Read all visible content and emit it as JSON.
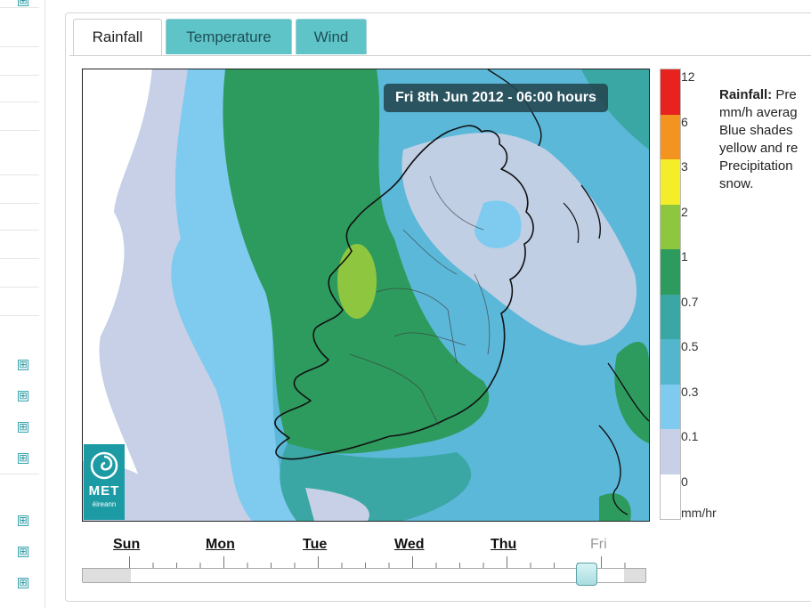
{
  "tabs": [
    "Rainfall",
    "Temperature",
    "Wind"
  ],
  "active_tab": "Rainfall",
  "map": {
    "time_label": "Fri 8th Jun 2012 - 06:00 hours",
    "logo_text": "MET",
    "logo_sub": "éireann"
  },
  "legend": {
    "labels": [
      "12",
      "6",
      "3",
      "2",
      "1",
      "0.7",
      "0.5",
      "0.3",
      "0.1",
      "0"
    ],
    "unit": "mm/hr",
    "colors": [
      "#e8231f",
      "#f39320",
      "#f4ee2a",
      "#8fc63f",
      "#2e9b5e",
      "#3aa7a4",
      "#53b6cc",
      "#7fcbf0",
      "#c7d0e6",
      "#ffffff"
    ]
  },
  "description": {
    "heading": "Rainfall:",
    "first_line": "Pre",
    "lines": [
      "mm/h averag",
      "Blue shades",
      "yellow and re",
      "Precipitation",
      "snow."
    ]
  },
  "timeline": {
    "days": [
      "Sun",
      "Mon",
      "Tue",
      "Wed",
      "Thu",
      "Fri"
    ],
    "current_day": "Fri"
  }
}
